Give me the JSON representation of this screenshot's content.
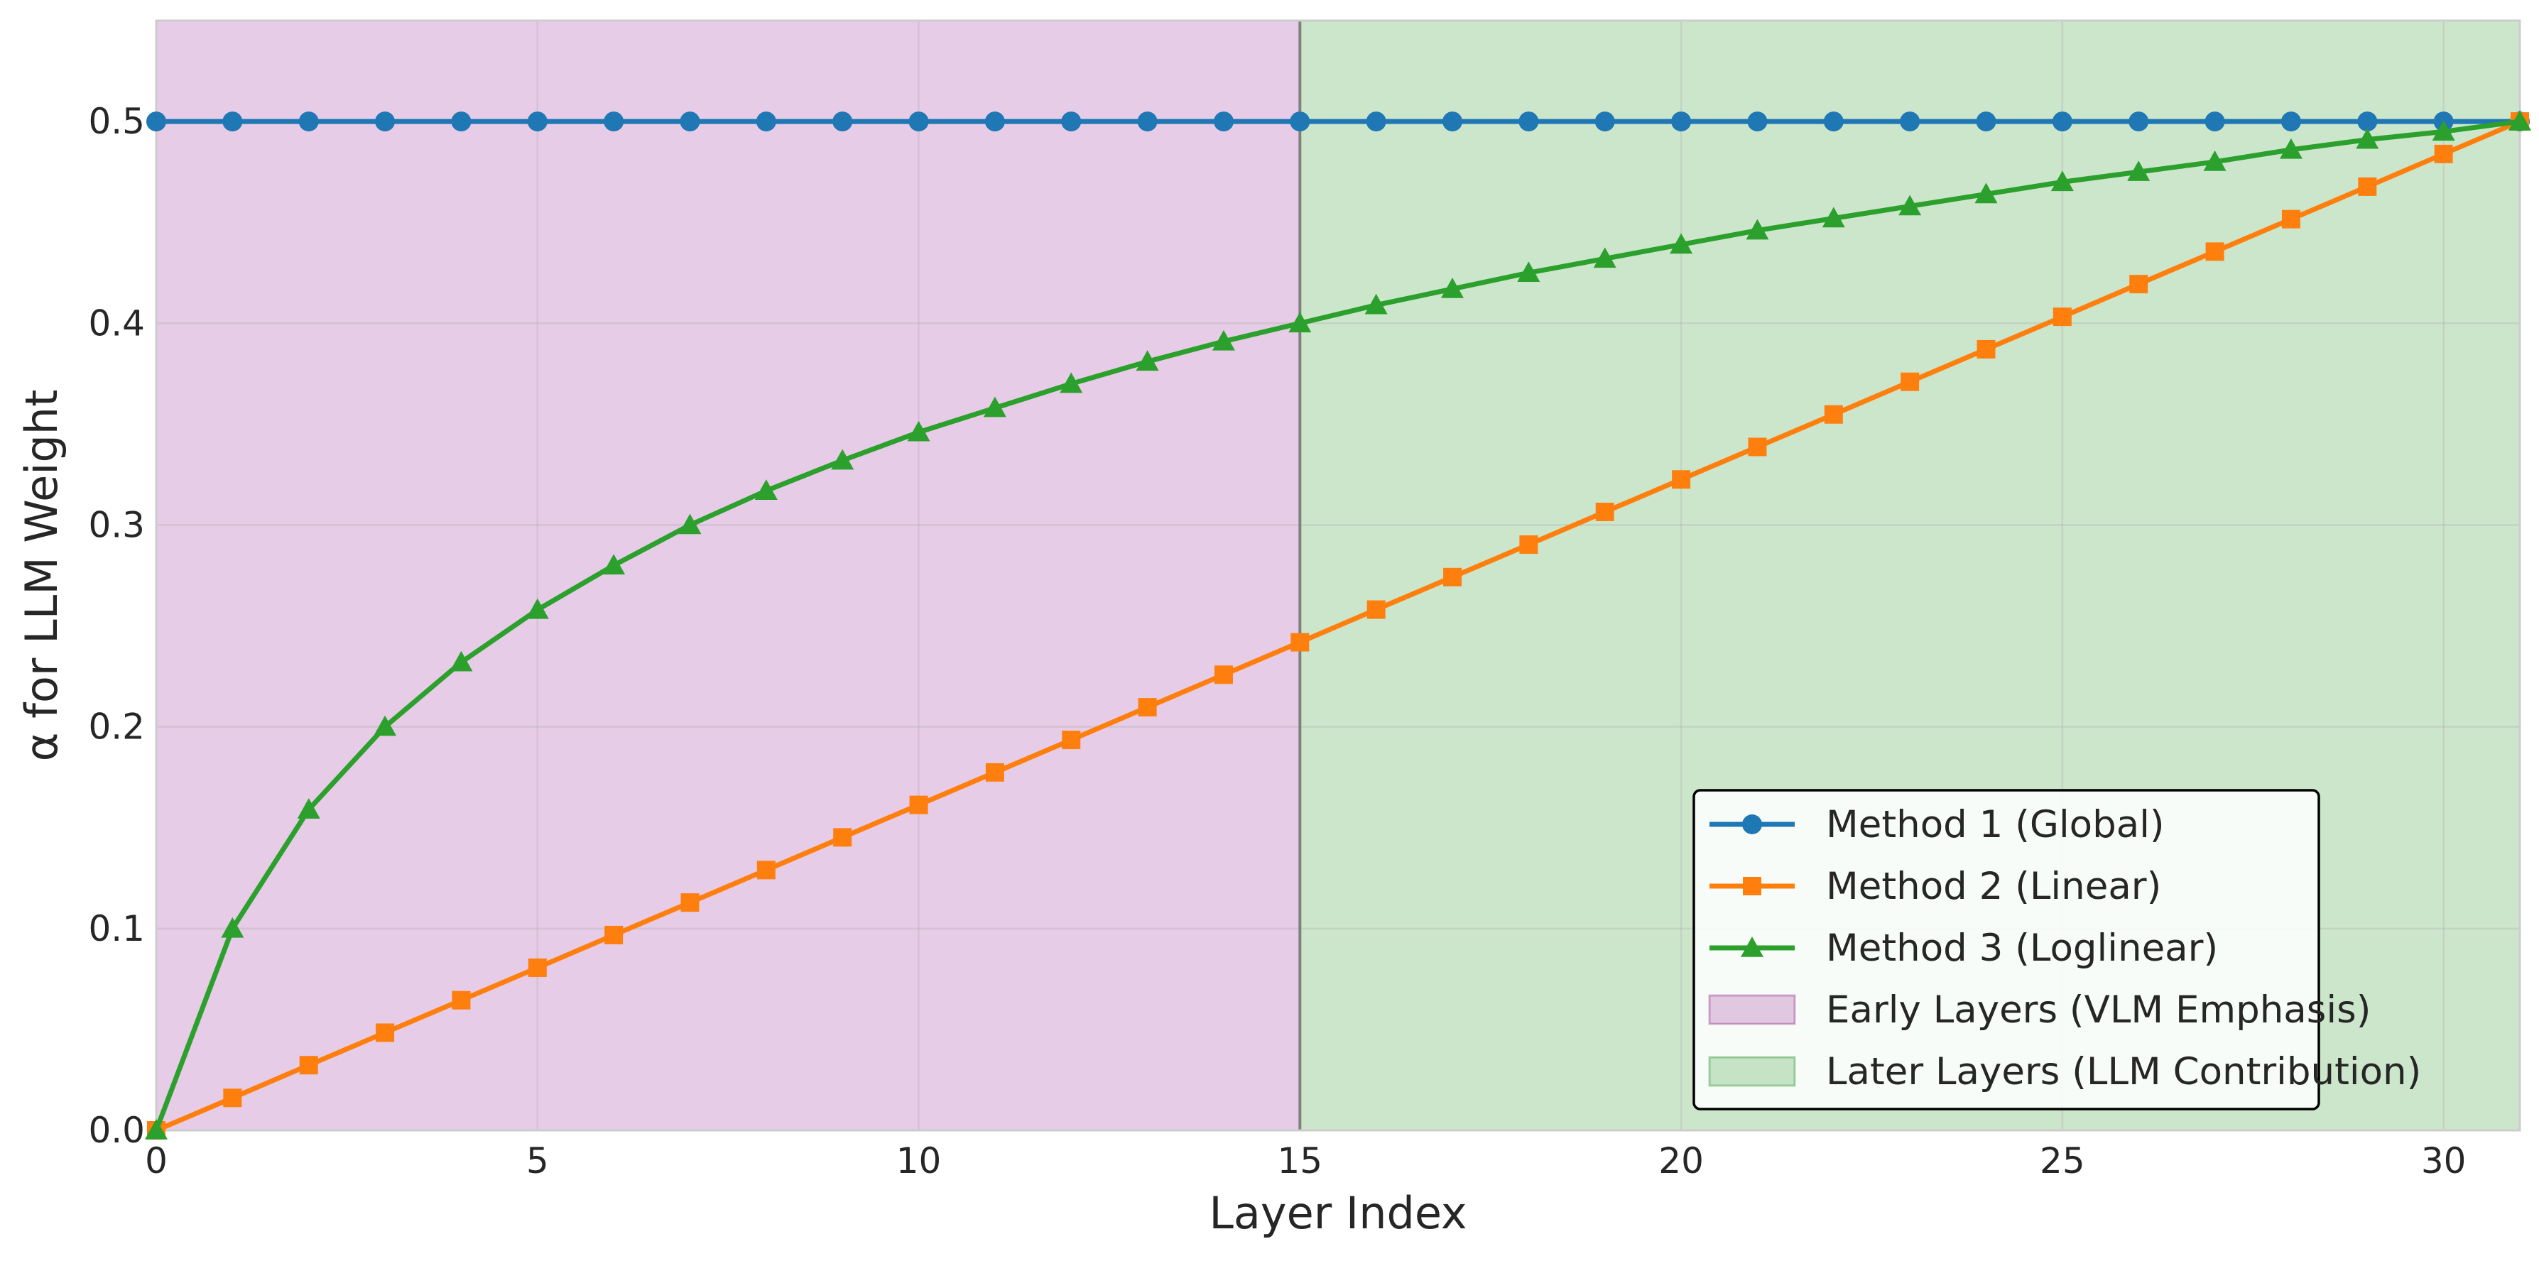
{
  "chart_data": {
    "type": "line",
    "title": "",
    "xlabel": "Layer Index",
    "ylabel": "α for LLM Weight",
    "xlim": [
      0,
      31
    ],
    "ylim": [
      0,
      0.55
    ],
    "xticks": [
      0,
      5,
      10,
      15,
      20,
      25,
      30
    ],
    "yticks": [
      0.0,
      0.1,
      0.2,
      0.3,
      0.4,
      0.5
    ],
    "xtick_labels": [
      "0",
      "5",
      "10",
      "15",
      "20",
      "25",
      "30"
    ],
    "ytick_labels": [
      "0.0",
      "0.1",
      "0.2",
      "0.3",
      "0.4",
      "0.5"
    ],
    "grid": true,
    "legend_position": "lower-right",
    "x": [
      0,
      1,
      2,
      3,
      4,
      5,
      6,
      7,
      8,
      9,
      10,
      11,
      12,
      13,
      14,
      15,
      16,
      17,
      18,
      19,
      20,
      21,
      22,
      23,
      24,
      25,
      26,
      27,
      28,
      29,
      30,
      31
    ],
    "series": [
      {
        "name": "Method 1 (Global)",
        "color": "#1f77b4",
        "marker": "circle",
        "values": [
          0.5,
          0.5,
          0.5,
          0.5,
          0.5,
          0.5,
          0.5,
          0.5,
          0.5,
          0.5,
          0.5,
          0.5,
          0.5,
          0.5,
          0.5,
          0.5,
          0.5,
          0.5,
          0.5,
          0.5,
          0.5,
          0.5,
          0.5,
          0.5,
          0.5,
          0.5,
          0.5,
          0.5,
          0.5,
          0.5,
          0.5,
          0.5
        ]
      },
      {
        "name": "Method 2 (Linear)",
        "color": "#ff7f0e",
        "marker": "square",
        "values": [
          0.0,
          0.0161,
          0.0323,
          0.0484,
          0.0645,
          0.0806,
          0.0968,
          0.1129,
          0.129,
          0.1452,
          0.1613,
          0.1774,
          0.1935,
          0.2097,
          0.2258,
          0.2419,
          0.2581,
          0.2742,
          0.2903,
          0.3065,
          0.3226,
          0.3387,
          0.3548,
          0.371,
          0.3871,
          0.4032,
          0.4194,
          0.4355,
          0.4516,
          0.4677,
          0.4839,
          0.5
        ]
      },
      {
        "name": "Method 3 (Loglinear)",
        "color": "#2ca02c",
        "marker": "triangle",
        "values": [
          0.0,
          0.1,
          0.159,
          0.2,
          0.232,
          0.258,
          0.28,
          0.3,
          0.317,
          0.332,
          0.346,
          0.358,
          0.37,
          0.381,
          0.391,
          0.4,
          0.409,
          0.417,
          0.425,
          0.432,
          0.439,
          0.446,
          0.452,
          0.458,
          0.464,
          0.47,
          0.475,
          0.48,
          0.486,
          0.491,
          0.495,
          0.5
        ]
      }
    ],
    "regions": [
      {
        "name": "Early Layers (VLM Emphasis)",
        "x_start": 0,
        "x_end": 15,
        "color": "#800080"
      },
      {
        "name": "Later Layers (LLM Contribution)",
        "x_start": 15,
        "x_end": 31,
        "color": "#008000"
      }
    ],
    "vline_x": 15
  }
}
